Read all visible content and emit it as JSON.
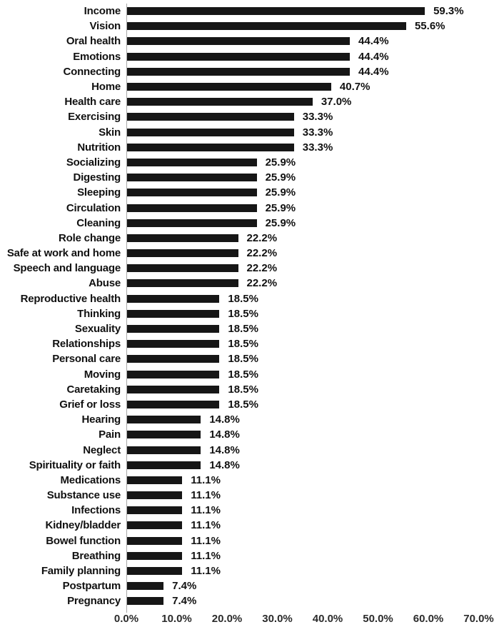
{
  "chart_data": {
    "type": "bar",
    "orientation": "horizontal",
    "title": "",
    "xlabel": "",
    "ylabel": "",
    "xlim": [
      0,
      70
    ],
    "grid": "off",
    "legend": "none",
    "bar_color": "#161616",
    "axis_line_color": "#a8a8a8",
    "x_ticks": [
      "0.0%",
      "10.0%",
      "20.0%",
      "30.0%",
      "40.0%",
      "50.0%",
      "60.0%",
      "70.0%"
    ],
    "x_tick_values": [
      0,
      10,
      20,
      30,
      40,
      50,
      60,
      70
    ],
    "categories": [
      "Income",
      "Vision",
      "Oral health",
      "Emotions",
      "Connecting",
      "Home",
      "Health care",
      "Exercising",
      "Skin",
      "Nutrition",
      "Socializing",
      "Digesting",
      "Sleeping",
      "Circulation",
      "Cleaning",
      "Role change",
      "Safe at work and home",
      "Speech and language",
      "Abuse",
      "Reproductive health",
      "Thinking",
      "Sexuality",
      "Relationships",
      "Personal care",
      "Moving",
      "Caretaking",
      "Grief or loss",
      "Hearing",
      "Pain",
      "Neglect",
      "Spirituality or faith",
      "Medications",
      "Substance use",
      "Infections",
      "Kidney/bladder",
      "Bowel function",
      "Breathing",
      "Family planning",
      "Postpartum",
      "Pregnancy"
    ],
    "values": [
      59.3,
      55.6,
      44.4,
      44.4,
      44.4,
      40.7,
      37.0,
      33.3,
      33.3,
      33.3,
      25.9,
      25.9,
      25.9,
      25.9,
      25.9,
      22.2,
      22.2,
      22.2,
      22.2,
      18.5,
      18.5,
      18.5,
      18.5,
      18.5,
      18.5,
      18.5,
      18.5,
      14.8,
      14.8,
      14.8,
      14.8,
      11.1,
      11.1,
      11.1,
      11.1,
      11.1,
      11.1,
      11.1,
      7.4,
      7.4
    ],
    "value_labels": [
      "59.3%",
      "55.6%",
      "44.4%",
      "44.4%",
      "44.4%",
      "40.7%",
      "37.0%",
      "33.3%",
      "33.3%",
      "33.3%",
      "25.9%",
      "25.9%",
      "25.9%",
      "25.9%",
      "25.9%",
      "22.2%",
      "22.2%",
      "22.2%",
      "22.2%",
      "18.5%",
      "18.5%",
      "18.5%",
      "18.5%",
      "18.5%",
      "18.5%",
      "18.5%",
      "18.5%",
      "14.8%",
      "14.8%",
      "14.8%",
      "14.8%",
      "11.1%",
      "11.1%",
      "11.1%",
      "11.1%",
      "11.1%",
      "11.1%",
      "11.1%",
      "7.4%",
      "7.4%"
    ]
  }
}
